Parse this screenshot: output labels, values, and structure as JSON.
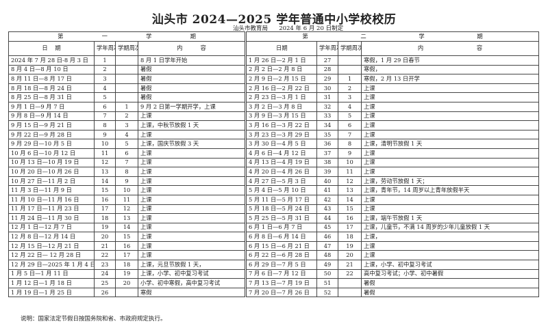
{
  "title": "汕头市 2024—2025 学年普通中小学校校历",
  "subtitle": "汕头市教育局      2024 年 6 月 20 日制定",
  "headers": {
    "date": [
      "日",
      "期"
    ],
    "year_week": "学年周次",
    "term_week": "学期周次",
    "content": [
      "内",
      "容"
    ]
  },
  "term1": {
    "label": [
      "第",
      "一",
      "学",
      "期"
    ],
    "rows": [
      [
        "2024 年 7 月 28 日-8 月 3 日",
        "1",
        "",
        "8 月 1 日学年开始"
      ],
      [
        "8 月 4 日—8 月 10 日",
        "2",
        "",
        "暑假"
      ],
      [
        "8 月 11 日—8 月 17 日",
        "3",
        "",
        "暑假"
      ],
      [
        "8 月 18 日—8 月 24 日",
        "4",
        "",
        "暑假"
      ],
      [
        "8 月 25 日—8 月 31 日",
        "5",
        "",
        "暑假"
      ],
      [
        "9 月 1 日—9 月 7 日",
        "6",
        "1",
        "9 月 2 日第一学期开学，上课"
      ],
      [
        "9 月 8 日—9 月 14 日",
        "7",
        "2",
        "上课"
      ],
      [
        "9 月 15 日—9 月 21 日",
        "8",
        "3",
        "上课，中秋节放假 1 天"
      ],
      [
        "9 月 22 日—9 月 28 日",
        "9",
        "4",
        "上课"
      ],
      [
        "9 月 29 日—10 月 5 日",
        "10",
        "5",
        "上课，国庆节放假 3 天"
      ],
      [
        "10 月 6 日—10 月 12 日",
        "11",
        "6",
        "上课"
      ],
      [
        "10 月 13 日—10 月 19 日",
        "12",
        "7",
        "上课"
      ],
      [
        "10 月 20 日—10 月 26 日",
        "13",
        "8",
        "上课"
      ],
      [
        "10 月 27 日—11 月 2 日",
        "14",
        "9",
        "上课"
      ],
      [
        "11 月 3 日—11 月 9 日",
        "15",
        "10",
        "上课"
      ],
      [
        "11 月 10 日—11 月 16 日",
        "16",
        "11",
        "上课"
      ],
      [
        "11 月 17 日—11 月 23 日",
        "17",
        "12",
        "上课"
      ],
      [
        "11 月 24 日—11 月 30 日",
        "18",
        "13",
        "上课"
      ],
      [
        "12 月 1 日—12 月 7 日",
        "19",
        "14",
        "上课"
      ],
      [
        "12 月 8 日—12 月 14 日",
        "20",
        "15",
        "上课"
      ],
      [
        "12 月 15 日—12 月 21 日",
        "21",
        "16",
        "上课"
      ],
      [
        "12 月 22 日— 12 月 28 日",
        "22",
        "17",
        "上课"
      ],
      [
        "12 月 29 日—2025 年 1 月 4 日",
        "23",
        "18",
        "上课，元旦节放假 1 天，"
      ],
      [
        "1 月 5 日—1 月 11 日",
        "24",
        "19",
        "上课，小学、初中复习考试"
      ],
      [
        "1 月 12 日—1 月 18 日",
        "25",
        "20",
        "小学、初中寒假，高中复习考试"
      ],
      [
        "1 月 19 日—1 月 25 日",
        "26",
        "",
        "寒假"
      ]
    ]
  },
  "term2": {
    "label": [
      "第",
      "二",
      "学",
      "期"
    ],
    "rows": [
      [
        "1 月 26 日—2 月 1 日",
        "27",
        "",
        "寒假，1 月 29 日春节"
      ],
      [
        "2 月 2 日—2 月 8 日",
        "28",
        "",
        "寒假，"
      ],
      [
        "2 月 9 日—2 月 15 日",
        "29",
        "1",
        "寒假，2 月 13 日开学"
      ],
      [
        "2 月 16 日—2 月 22 日",
        "30",
        "2",
        "上课"
      ],
      [
        "2 月 23 日—3 月 1 日",
        "31",
        "3",
        "上课"
      ],
      [
        "3 月 2 日—3 月 8 日",
        "32",
        "4",
        "上课"
      ],
      [
        "3 月 9 日—3 月 15 日",
        "33",
        "5",
        "上课"
      ],
      [
        "3 月 16 日—3 月 22 日",
        "34",
        "6",
        "上课"
      ],
      [
        "3 月 23 日—3 月 29 日",
        "35",
        "7",
        "上课"
      ],
      [
        "3 月 30 日—4 月 5 日",
        "36",
        "8",
        "上课，清明节放假 1 天"
      ],
      [
        "4 月 6 日—4 月 12 日",
        "37",
        "9",
        "上课"
      ],
      [
        "4 月 13 日—4 月 19 日",
        "38",
        "10",
        "上课"
      ],
      [
        "4 月 20 日—4 月 26 日",
        "39",
        "11",
        "上课"
      ],
      [
        "4 月 27 日—5 月 3 日",
        "40",
        "12",
        "上课，劳动节放假 1 天；"
      ],
      [
        "5 月 4 日—5 月 10 日",
        "41",
        "13",
        "上课，青年节，14 周岁以上青年放假半天"
      ],
      [
        "5 月 11 日—5 月 17 日",
        "42",
        "14",
        "上课"
      ],
      [
        "5 月 18 日—5 月 24 日",
        "43",
        "15",
        "上课"
      ],
      [
        "5 月 25 日—5 月 31 日",
        "44",
        "16",
        "上课，端午节放假 1 天"
      ],
      [
        "6 月 1 日—6 月 7 日",
        "45",
        "17",
        "上课，儿童节，不满 14 周岁的少年儿童放假 1 天"
      ],
      [
        "6 月 8 日—6 月 14 日",
        "46",
        "18",
        "上课，"
      ],
      [
        "6 月 15 日—6 月 21 日",
        "47",
        "19",
        "上课"
      ],
      [
        "6 月 22 日—6 月 28 日",
        "48",
        "20",
        "上课"
      ],
      [
        "6 月 29 日—7 月 5 日",
        "49",
        "21",
        "上课，小学、初中复习考试"
      ],
      [
        "7 月 6 日—7 月 12 日",
        "50",
        "22",
        "高中复习考试；小学、初中暑假"
      ],
      [
        "7 月 13 日—7 月 19 日",
        "51",
        "",
        "暑假"
      ],
      [
        "7 月 20 日—7 月 26 日",
        "52",
        "",
        "暑假"
      ]
    ]
  },
  "note": "说明：国家法定节假日按国务院和省、市政府规定执行。"
}
